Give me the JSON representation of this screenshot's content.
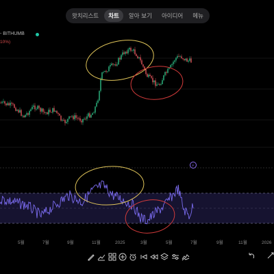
{
  "top_nav": {
    "tabs": [
      {
        "label": "왓치리스트",
        "active": false
      },
      {
        "label": "차트",
        "active": true
      },
      {
        "label": "알아 보기",
        "active": false
      },
      {
        "label": "아이디어",
        "active": false
      },
      {
        "label": "메뉴",
        "active": false
      }
    ]
  },
  "symbol": {
    "label": "- BITHUMB",
    "change": "10%)"
  },
  "indicator_badge": "⚡",
  "x_axis": {
    "ticks": [
      "5월",
      "7월",
      "9월",
      "11월",
      "2025",
      "3월",
      "5월",
      "7월",
      "9월",
      "11월",
      "2026"
    ]
  },
  "colors": {
    "up": "#2dbd85",
    "down": "#e0545a",
    "rsi_line": "#7b6cf0",
    "rsi_band": "#1d1940",
    "annotation_yellow": "#e2c65a",
    "annotation_red": "#d33b3b",
    "live_dot": "#1fc7a6"
  },
  "toolbar": {
    "icons": [
      "pencil-icon",
      "trendline-icon",
      "patterns-icon",
      "add-icon",
      "alarm-icon",
      "replay-icon",
      "bar-replay-icon",
      "layers-icon",
      "settings-sliders-icon",
      "indicators-icon"
    ],
    "right_icons": [
      "undo-icon",
      "more-icon"
    ]
  }
}
